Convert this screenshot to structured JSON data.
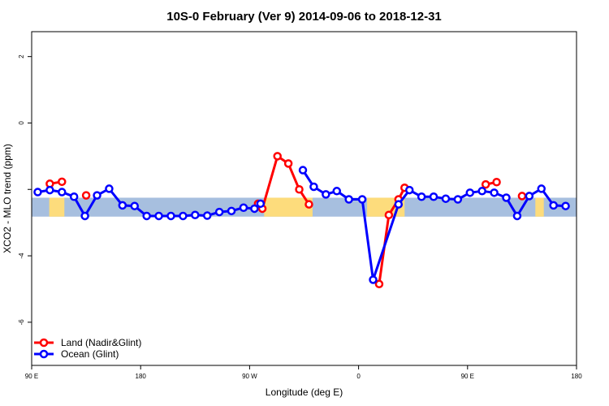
{
  "chart_data": {
    "type": "line",
    "title": "10S-0 February (Ver 9)   2014-09-06 to 2018-12-31",
    "xlabel": "Longitude (deg E)",
    "ylabel": "XCO2 - MLO trend (ppm)",
    "xlim": [
      90,
      540
    ],
    "ylim": [
      -7.3,
      2.75
    ],
    "xticks": [
      {
        "value": 90,
        "label": "90 E"
      },
      {
        "value": 180,
        "label": "180"
      },
      {
        "value": 270,
        "label": "90 W"
      },
      {
        "value": 360,
        "label": "0"
      },
      {
        "value": 450,
        "label": "90 E"
      },
      {
        "value": 540,
        "label": "180"
      }
    ],
    "yticks": [
      {
        "value": 2,
        "label": "2"
      },
      {
        "value": 0,
        "label": "0"
      },
      {
        "value": -2,
        "label": ""
      },
      {
        "value": -4,
        "label": "-4"
      },
      {
        "value": -6,
        "label": "-6"
      }
    ],
    "grid": false,
    "legend_position": "bottom-left",
    "background_band": {
      "y_range": [
        -2.82,
        -2.25
      ],
      "colors": {
        "ocean": "#a7bfdf",
        "land": "#fddc7c"
      },
      "land_spans": [
        [
          104.5,
          117
        ],
        [
          282,
          322
        ],
        [
          367,
          398
        ],
        [
          506,
          513
        ]
      ]
    },
    "series": [
      {
        "name": "Land (Nadir&Glint)",
        "color": "#ff0000",
        "segments": [
          [
            [
              105,
              -1.83
            ],
            [
              115,
              -1.77
            ]
          ],
          [
            [
              135,
              -2.18
            ]
          ],
          [
            [
              277,
              -2.43
            ],
            [
              280.5,
              -2.58
            ],
            [
              293,
              -1.0
            ],
            [
              302,
              -1.22
            ],
            [
              311,
              -2.0
            ],
            [
              319,
              -2.45
            ]
          ],
          [
            [
              377,
              -4.85
            ],
            [
              385,
              -2.77
            ],
            [
              393,
              -2.3
            ],
            [
              398,
              -1.95
            ]
          ],
          [
            [
              465,
              -1.85
            ],
            [
              474,
              -1.78
            ]
          ],
          [
            [
              495,
              -2.2
            ]
          ]
        ]
      },
      {
        "name": "Ocean (Glint)",
        "color": "#0000ff",
        "segments": [
          [
            [
              95,
              -2.08
            ],
            [
              105,
              -2.02
            ],
            [
              115,
              -2.08
            ],
            [
              125,
              -2.22
            ],
            [
              134,
              -2.8
            ],
            [
              144,
              -2.18
            ],
            [
              154,
              -1.98
            ],
            [
              165,
              -2.48
            ],
            [
              175,
              -2.5
            ],
            [
              185,
              -2.8
            ],
            [
              195,
              -2.8
            ],
            [
              205,
              -2.8
            ],
            [
              215,
              -2.8
            ],
            [
              225,
              -2.77
            ],
            [
              235,
              -2.79
            ],
            [
              245,
              -2.68
            ],
            [
              255,
              -2.65
            ],
            [
              265,
              -2.55
            ],
            [
              274,
              -2.58
            ],
            [
              279,
              -2.43
            ]
          ],
          [
            [
              314,
              -1.42
            ],
            [
              323,
              -1.92
            ],
            [
              333,
              -2.15
            ],
            [
              342,
              -2.05
            ],
            [
              352,
              -2.3
            ],
            [
              363,
              -2.3
            ],
            [
              372,
              -4.72
            ],
            [
              393,
              -2.45
            ],
            [
              402,
              -2.02
            ],
            [
              412,
              -2.22
            ],
            [
              422,
              -2.22
            ],
            [
              432,
              -2.28
            ],
            [
              442,
              -2.3
            ],
            [
              452,
              -2.1
            ],
            [
              462,
              -2.05
            ],
            [
              472,
              -2.1
            ],
            [
              482,
              -2.25
            ],
            [
              491,
              -2.8
            ],
            [
              501,
              -2.2
            ],
            [
              511,
              -1.98
            ],
            [
              521,
              -2.48
            ],
            [
              531,
              -2.5
            ]
          ]
        ]
      }
    ]
  }
}
